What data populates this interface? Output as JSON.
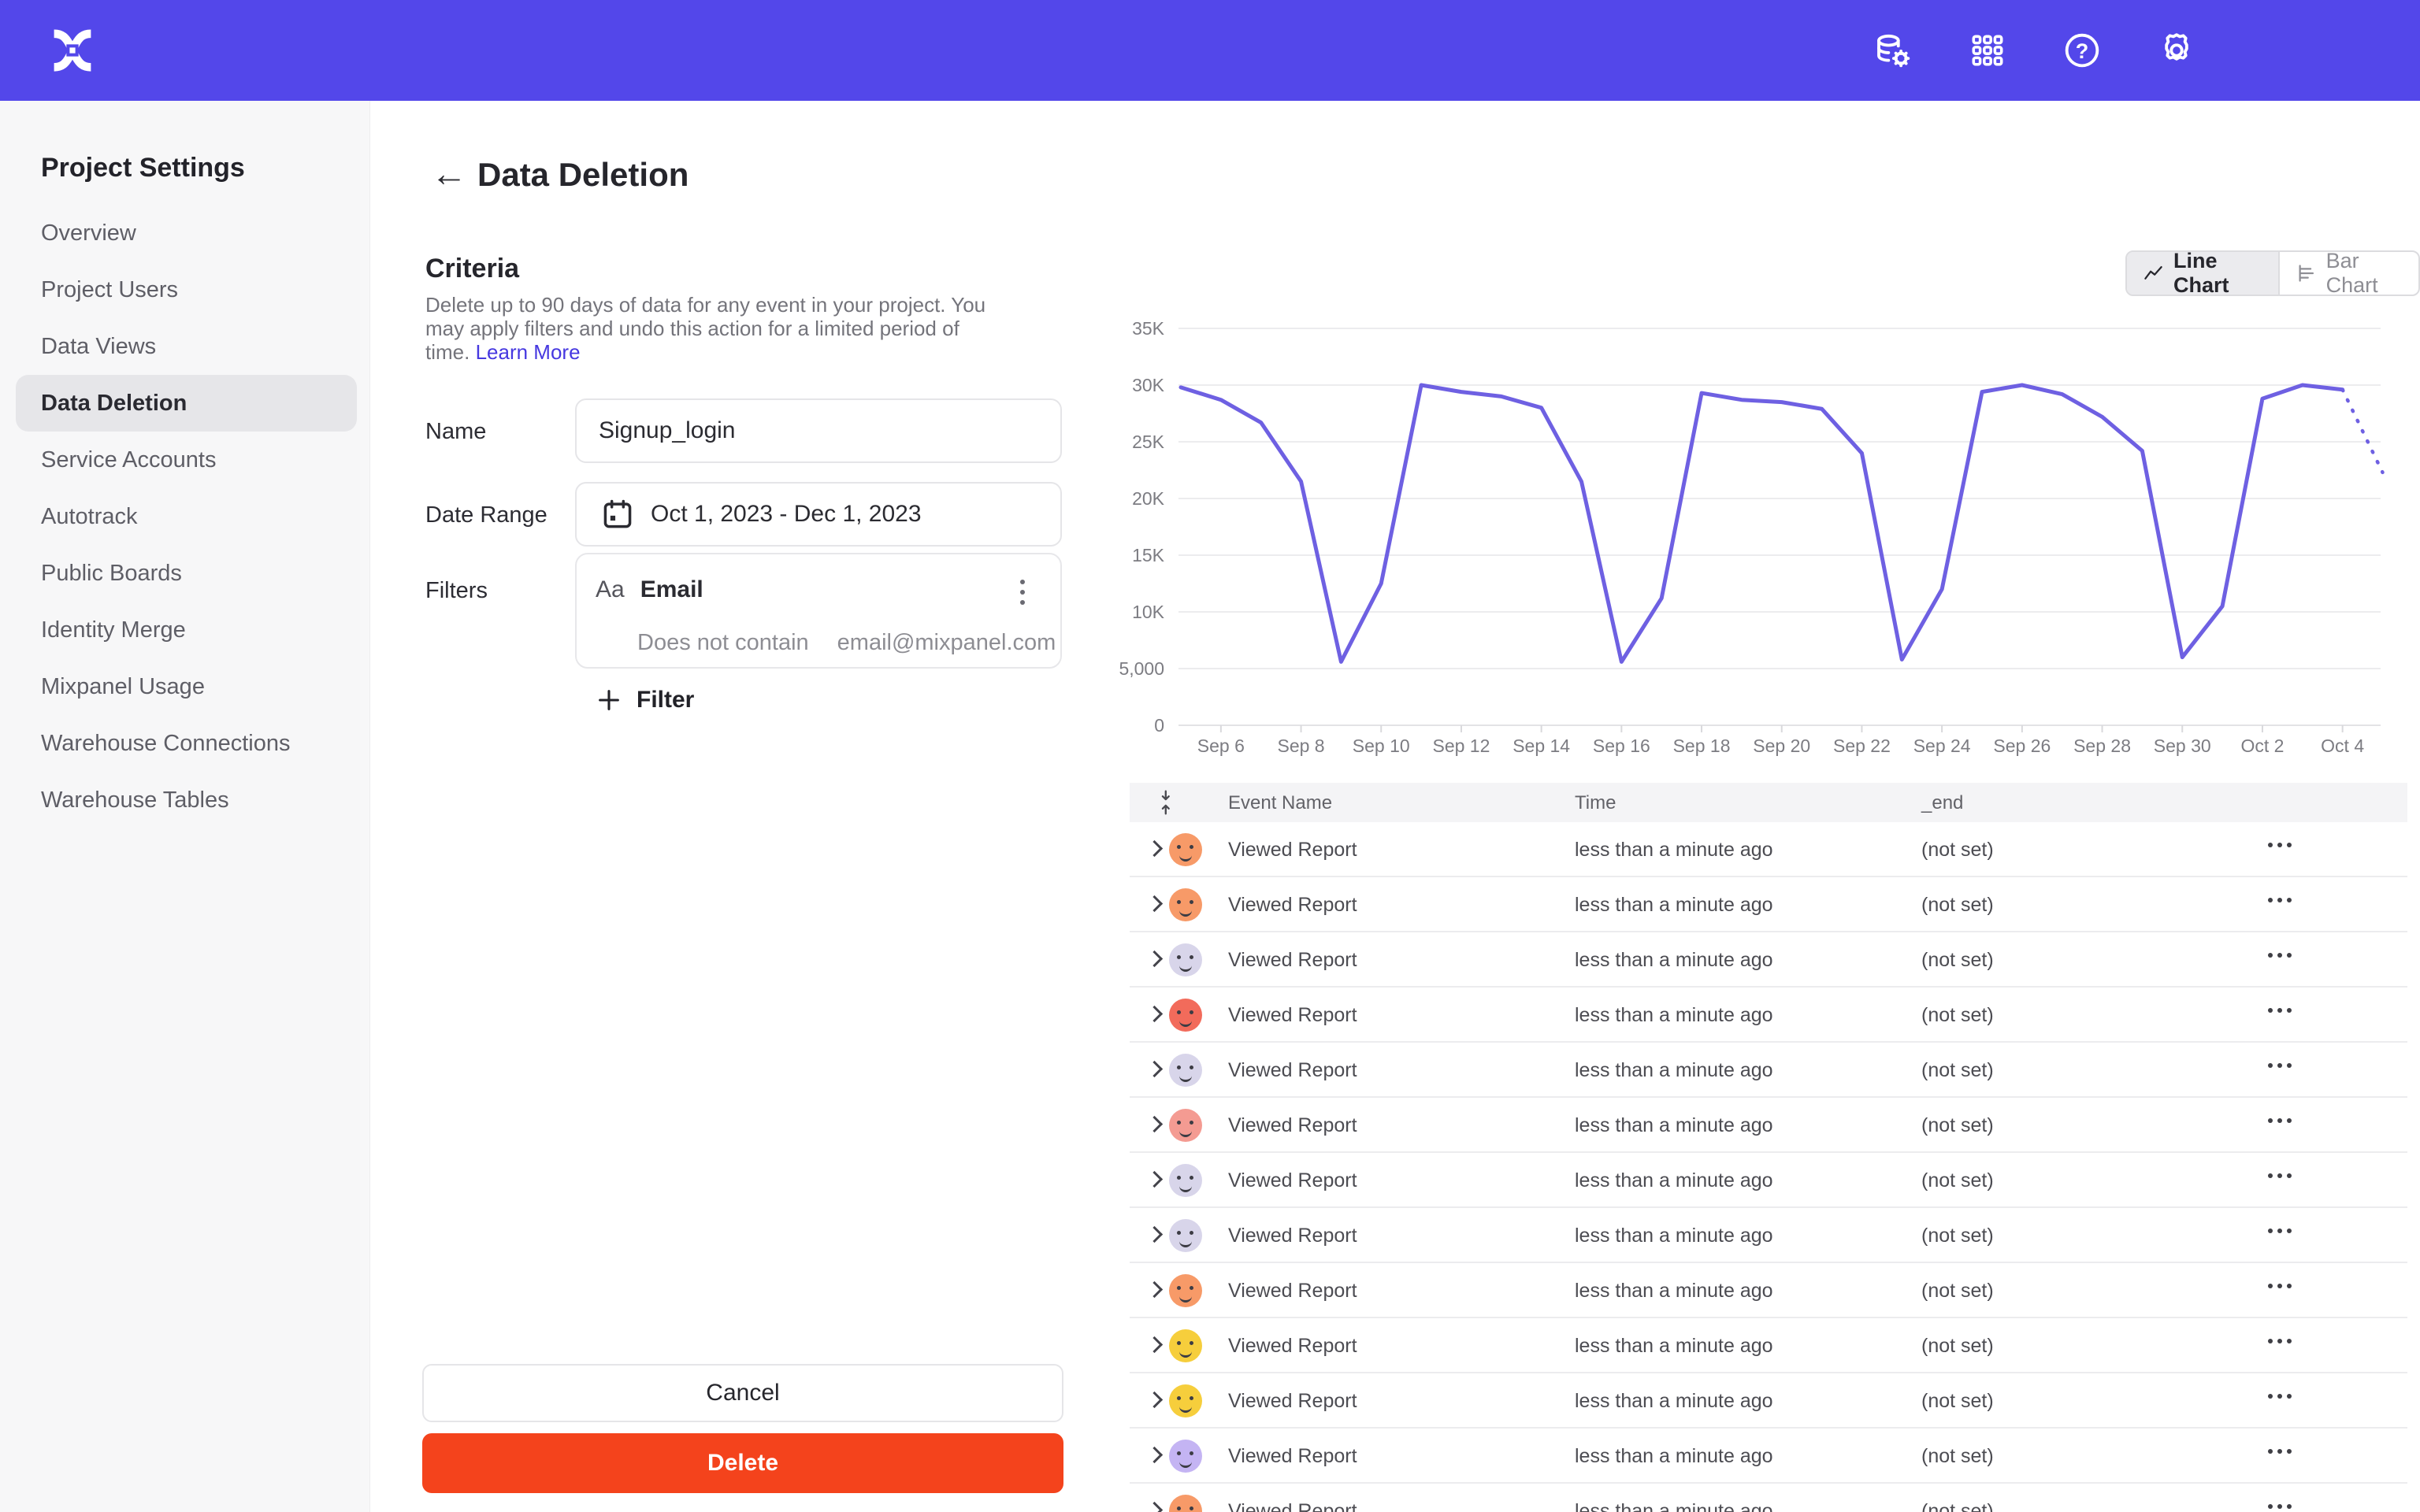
{
  "colors": {
    "topbar": "#5347EA",
    "chart_line": "#6E60E2",
    "delete_button": "#F4431C",
    "link": "#4638E0",
    "active_pill": "#E6E6E9"
  },
  "topbar": {
    "icons": [
      "data-management-icon",
      "apps-grid-icon",
      "help-icon",
      "settings-gear-icon"
    ]
  },
  "sidebar": {
    "title": "Project Settings",
    "items": [
      {
        "label": "Overview",
        "active": false
      },
      {
        "label": "Project Users",
        "active": false
      },
      {
        "label": "Data Views",
        "active": false
      },
      {
        "label": "Data Deletion",
        "active": true
      },
      {
        "label": "Service Accounts",
        "active": false
      },
      {
        "label": "Autotrack",
        "active": false
      },
      {
        "label": "Public Boards",
        "active": false
      },
      {
        "label": "Identity Merge",
        "active": false
      },
      {
        "label": "Mixpanel Usage",
        "active": false
      },
      {
        "label": "Warehouse Connections",
        "active": false
      },
      {
        "label": "Warehouse Tables",
        "active": false
      }
    ]
  },
  "page": {
    "title": "Data Deletion"
  },
  "criteria": {
    "heading": "Criteria",
    "line1": "Delete up to 90 days of data for any event in your project. You",
    "line2": "may apply filters and undo this action for a limited period of",
    "line3": "time.",
    "learn_more": "Learn More"
  },
  "form": {
    "name_label": "Name",
    "name_value": "Signup_login",
    "date_label": "Date Range",
    "date_value": "Oct 1, 2023 - Dec 1, 2023",
    "filters_label": "Filters",
    "filter": {
      "type_icon": "Aa",
      "property": "Email",
      "operator": "Does not contain",
      "value": "email@mixpanel.com"
    },
    "add_filter_label": "Filter"
  },
  "actions": {
    "cancel": "Cancel",
    "delete": "Delete"
  },
  "chart_toggle": {
    "line_label": "Line Chart",
    "bar_label": "Bar Chart",
    "active": "line"
  },
  "chart_data": {
    "type": "line",
    "x": [
      "Sep 5",
      "Sep 6",
      "Sep 7",
      "Sep 8",
      "Sep 9",
      "Sep 10",
      "Sep 11",
      "Sep 12",
      "Sep 13",
      "Sep 14",
      "Sep 15",
      "Sep 16",
      "Sep 17",
      "Sep 18",
      "Sep 19",
      "Sep 20",
      "Sep 21",
      "Sep 22",
      "Sep 23",
      "Sep 24",
      "Sep 25",
      "Sep 26",
      "Sep 27",
      "Sep 28",
      "Sep 29",
      "Sep 30",
      "Oct 1",
      "Oct 2",
      "Oct 3",
      "Oct 4",
      "Oct 5"
    ],
    "values": [
      29800,
      28700,
      26700,
      21500,
      5600,
      12500,
      30000,
      29400,
      29000,
      28000,
      21500,
      5600,
      11200,
      29300,
      28700,
      28500,
      27900,
      24000,
      5800,
      12000,
      29400,
      30000,
      29200,
      27200,
      24200,
      6000,
      10500,
      28800,
      30000,
      29600,
      22300
    ],
    "dashed_from_index": 29,
    "ylim": [
      0,
      35000
    ],
    "y_tick_values": [
      0,
      5000,
      10000,
      15000,
      20000,
      25000,
      30000,
      35000
    ],
    "y_tick_labels": [
      "0",
      "5,000",
      "10K",
      "15K",
      "20K",
      "25K",
      "30K",
      "35K"
    ],
    "x_tick_labels": [
      "Sep 6",
      "Sep 8",
      "Sep 10",
      "Sep 12",
      "Sep 14",
      "Sep 16",
      "Sep 18",
      "Sep 20",
      "Sep 22",
      "Sep 24",
      "Sep 26",
      "Sep 28",
      "Sep 30",
      "Oct 2",
      "Oct 4"
    ],
    "line_color": "#6E60E2",
    "grid": true,
    "legend": "none",
    "title": ""
  },
  "table": {
    "headers": [
      "Event Name",
      "Time",
      "_end"
    ],
    "rows": [
      {
        "event": "Viewed Report",
        "time": "less than a minute ago",
        "end": "(not set)",
        "avatar_color": "#F79A68"
      },
      {
        "event": "Viewed Report",
        "time": "less than a minute ago",
        "end": "(not set)",
        "avatar_color": "#F79A68"
      },
      {
        "event": "Viewed Report",
        "time": "less than a minute ago",
        "end": "(not set)",
        "avatar_color": "#D8D5EA"
      },
      {
        "event": "Viewed Report",
        "time": "less than a minute ago",
        "end": "(not set)",
        "avatar_color": "#F26B5B"
      },
      {
        "event": "Viewed Report",
        "time": "less than a minute ago",
        "end": "(not set)",
        "avatar_color": "#D8D5EA"
      },
      {
        "event": "Viewed Report",
        "time": "less than a minute ago",
        "end": "(not set)",
        "avatar_color": "#F49B92"
      },
      {
        "event": "Viewed Report",
        "time": "less than a minute ago",
        "end": "(not set)",
        "avatar_color": "#D8D5EA"
      },
      {
        "event": "Viewed Report",
        "time": "less than a minute ago",
        "end": "(not set)",
        "avatar_color": "#D8D5EA"
      },
      {
        "event": "Viewed Report",
        "time": "less than a minute ago",
        "end": "(not set)",
        "avatar_color": "#F79A68"
      },
      {
        "event": "Viewed Report",
        "time": "less than a minute ago",
        "end": "(not set)",
        "avatar_color": "#F6CE3C"
      },
      {
        "event": "Viewed Report",
        "time": "less than a minute ago",
        "end": "(not set)",
        "avatar_color": "#F6CE3C"
      },
      {
        "event": "Viewed Report",
        "time": "less than a minute ago",
        "end": "(not set)",
        "avatar_color": "#C4B4F3"
      },
      {
        "event": "Viewed Report",
        "time": "less than a minute ago",
        "end": "(not set)",
        "avatar_color": "#F79A68"
      }
    ]
  }
}
